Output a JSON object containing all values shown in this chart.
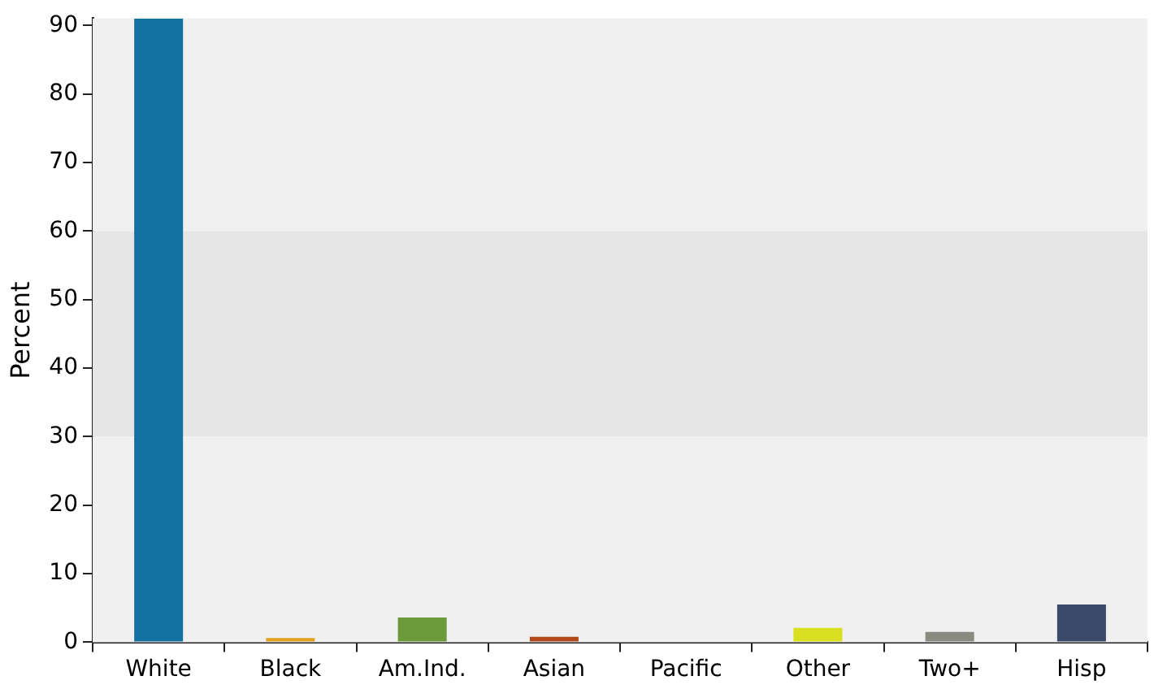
{
  "chart_data": {
    "type": "bar",
    "ylabel": "Percent",
    "categories": [
      "White",
      "Black",
      "Am.Ind.",
      "Asian",
      "Pacific",
      "Other",
      "Two+",
      "Hisp"
    ],
    "values": [
      91,
      0.6,
      3.6,
      0.8,
      0,
      2.1,
      1.5,
      5.5
    ],
    "colors": [
      "#1470a0",
      "#e0a020",
      "#6a9a3a",
      "#b04a1a",
      "#3a7ab0",
      "#d8e020",
      "#8a8a80",
      "#3a4a6a"
    ],
    "ylim": [
      0,
      91
    ],
    "yticks": [
      0,
      10,
      20,
      30,
      40,
      50,
      60,
      70,
      80,
      90
    ],
    "grid": false,
    "legend": false,
    "bands": [
      {
        "axis": "y",
        "from": 0,
        "to": 30,
        "color": "#f0f0f0"
      },
      {
        "axis": "y",
        "from": 30,
        "to": 60,
        "color": "#e6e6e6"
      },
      {
        "axis": "y",
        "from": 60,
        "to": 91,
        "color": "#f0f0f0"
      }
    ]
  }
}
